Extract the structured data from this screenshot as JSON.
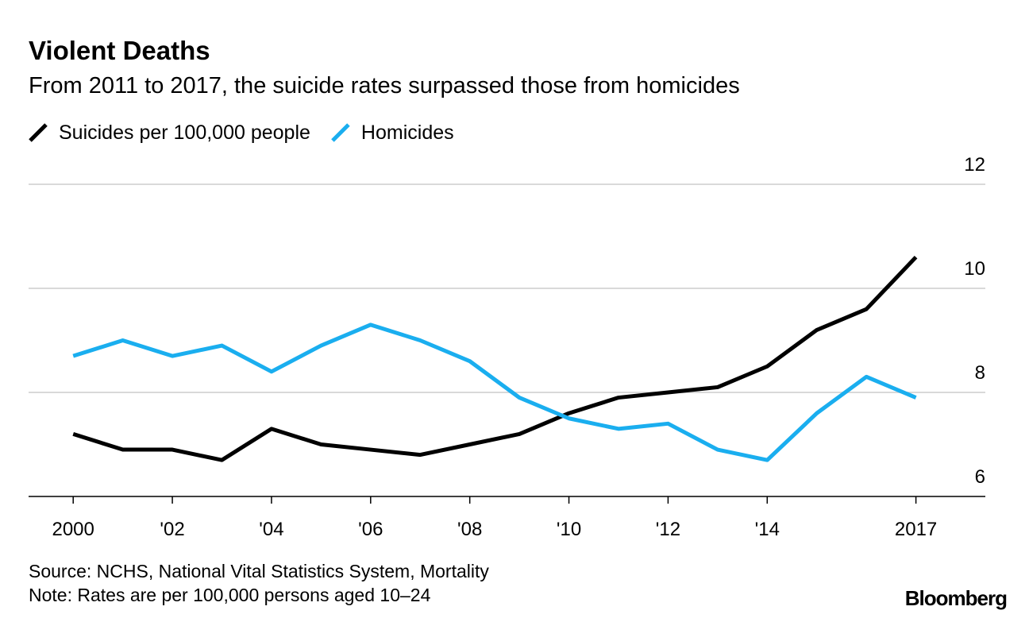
{
  "chart_data": {
    "type": "line",
    "title": "Violent Deaths",
    "subtitle": "From 2011 to 2017, the suicide rates surpassed those from homicides",
    "x": [
      2000,
      2001,
      2002,
      2003,
      2004,
      2005,
      2006,
      2007,
      2008,
      2009,
      2010,
      2011,
      2012,
      2013,
      2014,
      2015,
      2016,
      2017
    ],
    "series": [
      {
        "name": "Suicides per 100,000 people",
        "color": "#000000",
        "values": [
          7.2,
          6.9,
          6.9,
          6.7,
          7.3,
          7.0,
          6.9,
          6.8,
          7.0,
          7.2,
          7.6,
          7.9,
          8.0,
          8.1,
          8.5,
          9.2,
          9.6,
          10.6
        ]
      },
      {
        "name": "Homicides",
        "color": "#1aaeef",
        "values": [
          8.7,
          9.0,
          8.7,
          8.9,
          8.4,
          8.9,
          9.3,
          9.0,
          8.6,
          7.9,
          7.5,
          7.3,
          7.4,
          6.9,
          6.7,
          7.6,
          8.3,
          7.9
        ]
      }
    ],
    "xlim": [
      1999.1,
      2018.4
    ],
    "xticks": [
      2000,
      {
        "value": 2002,
        "label": "'02"
      },
      {
        "value": 2004,
        "label": "'04"
      },
      {
        "value": 2006,
        "label": "'06"
      },
      {
        "value": 2008,
        "label": "'08"
      },
      {
        "value": 2010,
        "label": "'10"
      },
      {
        "value": 2012,
        "label": "'12"
      },
      {
        "value": 2014,
        "label": "'14"
      },
      2017
    ],
    "ylim": [
      6,
      12
    ],
    "yticks": [
      6,
      8,
      10,
      12
    ],
    "grid": true,
    "legend": "top-left",
    "source": "Source: NCHS, National Vital Statistics System, Mortality",
    "note": "Note: Rates are per 100,000 persons aged 10–24",
    "brand": "Bloomberg"
  }
}
